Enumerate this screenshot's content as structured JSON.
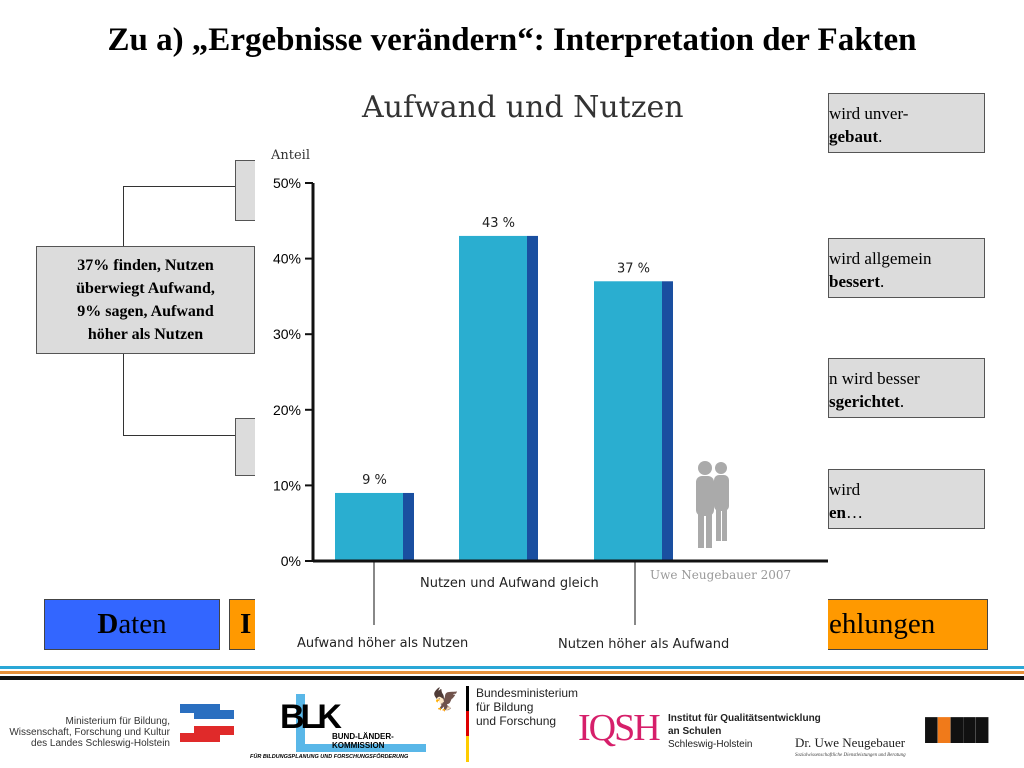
{
  "title": "Zu a) „Ergebnisse verändern“: Interpretation der Fakten",
  "left_box": {
    "lines": [
      "37% finden, Nutzen",
      "überwiegt Aufwand,",
      "9% sagen, Aufwand",
      "höher als  Nutzen"
    ]
  },
  "right_boxes": [
    {
      "line1": "wird unver-",
      "bold": "gebaut",
      "end": "."
    },
    {
      "line1": "wird allgemein",
      "bold": "bessert",
      "end": "."
    },
    {
      "line1": "n wird besser",
      "bold": "sgerichtet",
      "end": "."
    },
    {
      "line1": "wird",
      "bold": "en",
      "end": "…"
    }
  ],
  "nav": {
    "daten_initial": "D",
    "daten_rest": "aten",
    "middle_initial": "I",
    "right": "ehlungen"
  },
  "colors": {
    "blue_btn": "#3366ff",
    "orange_btn": "#ff9900",
    "bar": "#2aaed0",
    "bar_dark": "#1a4fa0"
  },
  "chart_data": {
    "type": "bar",
    "title": "Aufwand und Nutzen",
    "ylabel": "Anteil",
    "ylim": [
      0,
      50
    ],
    "yticks": [
      "0%",
      "10%",
      "20%",
      "30%",
      "40%",
      "50%"
    ],
    "categories": [
      "Aufwand höher als Nutzen",
      "Nutzen und Aufwand gleich",
      "Nutzen höher als Aufwand"
    ],
    "values": [
      9,
      43,
      37
    ],
    "data_labels": [
      "9 %",
      "43 %",
      "37 %"
    ],
    "credit": "Uwe Neugebauer 2007",
    "grid": false
  },
  "footer": {
    "ministry": [
      "Ministerium für Bildung,",
      "Wissenschaft, Forschung und Kultur",
      "des Landes Schleswig-Holstein"
    ],
    "blk_main": "BLK",
    "blk_name": "BUND-LÄNDER-KOMMISSION",
    "blk_sub": "FÜR BILDUNGSPLANUNG UND FORSCHUNGSFÖRDERUNG",
    "bmbf": [
      "Bundesministerium",
      "für Bildung",
      "und Forschung"
    ],
    "iqsh_logo": "IQSH",
    "iqsh": [
      "Institut für Qualitätsentwicklung",
      "an Schulen",
      "Schleswig-Holstein"
    ],
    "neugebauer": "Dr. Uwe Neugebauer",
    "neugebauer_sub": "Sozialwissenschaftliche Dienstleistungen und Beratung"
  }
}
